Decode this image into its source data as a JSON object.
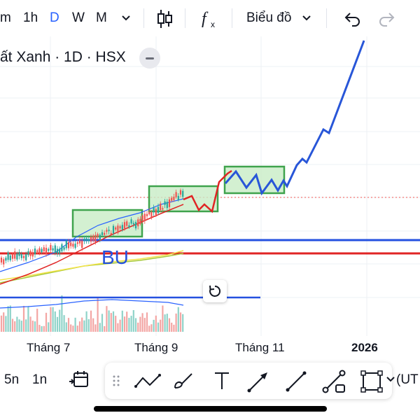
{
  "toolbar": {
    "interval_m": "m",
    "interval_1h": "1h",
    "interval_d": "D",
    "interval_w": "W",
    "interval_mo": "M",
    "chart_type_label": "Biểu đồ"
  },
  "symbol": {
    "title": "ất Xanh · 1D · HSX"
  },
  "chart": {
    "annotation_text": "BU",
    "x_labels": [
      "Tháng 7",
      "Tháng 9",
      "Tháng 11",
      "2026"
    ]
  },
  "bottom_bar": {
    "range_5n": "5n",
    "range_1n": "1n",
    "timezone": "(UT"
  },
  "icons": {
    "chevron": "chevron-down-icon",
    "candle": "candlestick-icon",
    "fx": "indicator-fx-icon",
    "undo": "undo-icon",
    "redo": "redo-icon",
    "reset": "reset-chart-icon",
    "date_range": "date-range-icon",
    "drag": "drag-handle-icon",
    "trend": "trend-line-icon",
    "brush": "brush-icon",
    "text": "text-tool-icon",
    "arrow": "arrow-tool-icon",
    "line": "line-tool-icon",
    "ray": "ray-tool-icon",
    "rect": "rectangle-tool-icon"
  },
  "colors": {
    "accent": "#2962ff",
    "up": "#26a69a",
    "down": "#ef5350",
    "hline_red": "#e02424",
    "hline_blue": "#2451e0",
    "projection": "#2856d8",
    "box_fill": "#c8ecc6",
    "box_border": "#3fa34d"
  }
}
